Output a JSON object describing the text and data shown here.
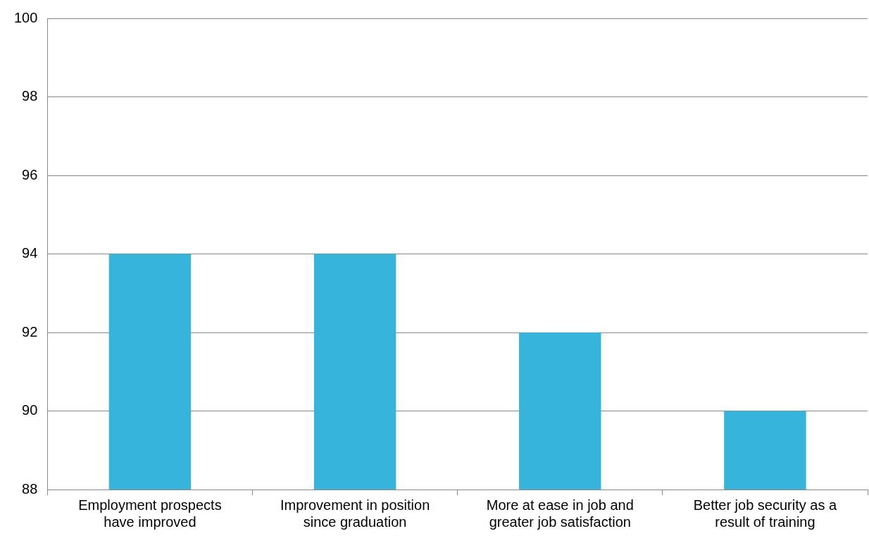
{
  "chart_data": {
    "type": "bar",
    "categories": [
      "Employment prospects\nhave improved",
      "Improvement in position\nsince graduation",
      "More at ease in job and\ngreater job satisfaction",
      "Better job security as a\nresult of training"
    ],
    "values": [
      94,
      94,
      92,
      90
    ],
    "color": "#36b4dc",
    "ylim": [
      88,
      100
    ],
    "yticks": [
      88,
      90,
      92,
      94,
      96,
      98,
      100
    ],
    "grid": "y"
  }
}
